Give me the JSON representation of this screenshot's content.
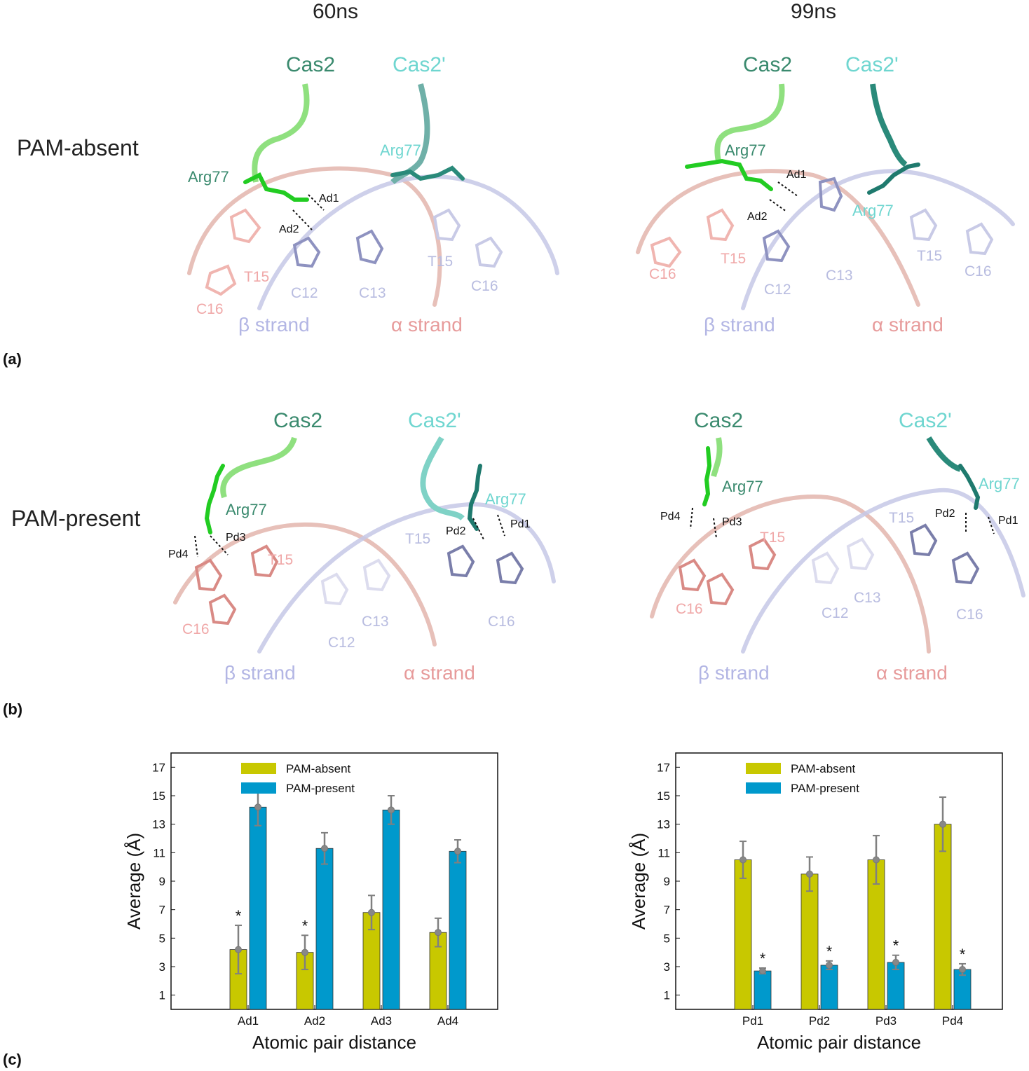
{
  "columns": [
    "60ns",
    "99ns"
  ],
  "rows": [
    "PAM-absent",
    "PAM-present"
  ],
  "panel_letters": [
    "(a)",
    "(b)",
    "(c)"
  ],
  "structures": {
    "a_left": {
      "cas2": "Cas2",
      "cas2p": "Cas2'",
      "arg_cas2": "Arg77",
      "arg_cas2p": "Arg77",
      "pair1": "Ad1",
      "pair2": "Ad2",
      "nucs": {
        "c16a": "C16",
        "t15a": "T15",
        "c12": "C12",
        "c13": "C13",
        "t15b": "T15",
        "c16b": "C16"
      },
      "strand_beta": "β strand",
      "strand_alpha": "α strand"
    },
    "a_right": {
      "cas2": "Cas2",
      "cas2p": "Cas2'",
      "arg_cas2": "Arg77",
      "arg_cas2p": "Arg77",
      "pair1": "Ad1",
      "pair2": "Ad2",
      "nucs": {
        "c16a": "C16",
        "t15a": "T15",
        "c12": "C12",
        "c13": "C13",
        "t15b": "T15",
        "c16b": "C16"
      },
      "strand_beta": "β strand",
      "strand_alpha": "α strand"
    },
    "b_left": {
      "cas2": "Cas2",
      "cas2p": "Cas2'",
      "arg_cas2": "Arg77",
      "arg_cas2p": "Arg77",
      "pd1": "Pd1",
      "pd2": "Pd2",
      "pd3": "Pd3",
      "pd4": "Pd4",
      "nucs": {
        "c16a": "C16",
        "t15a": "T15",
        "c12": "C12",
        "c13": "C13",
        "t15b": "T15",
        "c16b": "C16"
      },
      "strand_beta": "β strand",
      "strand_alpha": "α strand"
    },
    "b_right": {
      "cas2": "Cas2",
      "cas2p": "Cas2'",
      "arg_cas2": "Arg77",
      "arg_cas2p": "Arg77",
      "pd1": "Pd1",
      "pd2": "Pd2",
      "pd3": "Pd3",
      "pd4": "Pd4",
      "nucs": {
        "c16a": "C16",
        "t15a": "T15",
        "c12": "C12",
        "c13": "C13",
        "t15b": "T15",
        "c16b": "C16"
      },
      "strand_beta": "β strand",
      "strand_alpha": "α strand"
    }
  },
  "colors": {
    "cas2": "#3a8a6e",
    "cas2p": "#6fd6d0",
    "beta": "#b3b6e4",
    "alpha": "#e79b9b",
    "nuc_pink": "#f0a8a8",
    "nuc_blue": "#b8bce0",
    "absent": "#c8c800",
    "present": "#0099cc"
  },
  "chart_data": [
    {
      "type": "bar",
      "categories": [
        "Ad1",
        "Ad2",
        "Ad3",
        "Ad4"
      ],
      "series": [
        {
          "name": "PAM-absent",
          "values": [
            4.2,
            4.0,
            6.8,
            5.4
          ],
          "errors": [
            1.7,
            1.2,
            1.2,
            1.0
          ]
        },
        {
          "name": "PAM-present",
          "values": [
            14.2,
            11.3,
            14.0,
            11.1
          ],
          "errors": [
            1.3,
            1.1,
            1.0,
            0.8
          ]
        }
      ],
      "stars": [
        {
          "category": 0,
          "series": 0
        },
        {
          "category": 1,
          "series": 0
        }
      ],
      "xlabel": "Atomic pair distance",
      "ylabel": "Average (Å)",
      "ylim": [
        0,
        18
      ],
      "yticks": [
        1,
        3,
        5,
        7,
        9,
        11,
        13,
        15,
        17
      ],
      "legend": "top-center"
    },
    {
      "type": "bar",
      "categories": [
        "Pd1",
        "Pd2",
        "Pd3",
        "Pd4"
      ],
      "series": [
        {
          "name": "PAM-absent",
          "values": [
            10.5,
            9.5,
            10.5,
            13.0
          ],
          "errors": [
            1.3,
            1.2,
            1.7,
            1.9
          ]
        },
        {
          "name": "PAM-present",
          "values": [
            2.7,
            3.1,
            3.3,
            2.8
          ],
          "errors": [
            0.2,
            0.3,
            0.5,
            0.4
          ]
        }
      ],
      "stars": [
        {
          "category": 0,
          "series": 1
        },
        {
          "category": 1,
          "series": 1
        },
        {
          "category": 2,
          "series": 1
        },
        {
          "category": 3,
          "series": 1
        }
      ],
      "xlabel": "Atomic pair distance",
      "ylabel": "Average (Å)",
      "ylim": [
        0,
        18
      ],
      "yticks": [
        1,
        3,
        5,
        7,
        9,
        11,
        13,
        15,
        17
      ],
      "legend": "top-center"
    }
  ]
}
